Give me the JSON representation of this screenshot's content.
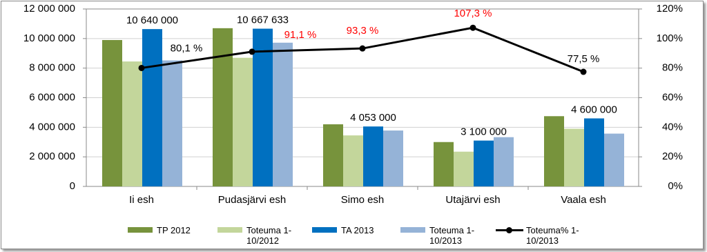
{
  "chart_data": {
    "type": "bar",
    "categories": [
      "Ii esh",
      "Pudasjärvi esh",
      "Simo esh",
      "Utajärvi esh",
      "Vaala esh"
    ],
    "series": [
      {
        "name": "TP 2012",
        "type": "bar",
        "color": "#77933c",
        "values": [
          9900000,
          10700000,
          4200000,
          3000000,
          4750000
        ]
      },
      {
        "name": "Toteuma 1-10/2012",
        "type": "bar",
        "color": "#c3d69b",
        "values": [
          8450000,
          8700000,
          3450000,
          2350000,
          3900000
        ]
      },
      {
        "name": "TA 2013",
        "type": "bar",
        "color": "#0070c0",
        "values": [
          10640000,
          10667633,
          4053000,
          3100000,
          4600000
        ],
        "value_labels": [
          "10 640 000",
          "10 667 633",
          "4 053 000",
          "3 100 000",
          "4 600 000"
        ]
      },
      {
        "name": "Toteuma 1-10/2013",
        "type": "bar",
        "color": "#95b3d7",
        "values": [
          8520000,
          9720000,
          3780000,
          3330000,
          3570000
        ]
      },
      {
        "name": "Toteuma% 1-10/2013",
        "type": "line",
        "axis": "y2",
        "color": "#000000",
        "values": [
          80.1,
          91.1,
          93.3,
          107.3,
          77.5
        ],
        "value_labels": [
          "80,1 %",
          "91,1 %",
          "93,3 %",
          "107,3 %",
          "77,5 %"
        ],
        "value_label_colors": [
          "#000000",
          "#ff0000",
          "#ff0000",
          "#ff0000",
          "#000000"
        ]
      }
    ],
    "ylim": [
      0,
      12000000
    ],
    "yticks": [
      0,
      {
        "value": 2000000,
        "label": "2 000 000"
      },
      {
        "value": 4000000,
        "label": "4 000 000"
      },
      {
        "value": 6000000,
        "label": "6 000 000"
      },
      {
        "value": 8000000,
        "label": "8 000 000"
      },
      {
        "value": 10000000,
        "label": "10 000 000"
      },
      {
        "value": 12000000,
        "label": "12 000 000"
      }
    ],
    "y2lim": [
      0,
      120
    ],
    "y2ticks": [
      {
        "value": 0,
        "label": "0%"
      },
      {
        "value": 20,
        "label": "20%"
      },
      {
        "value": 40,
        "label": "40%"
      },
      {
        "value": 60,
        "label": "60%"
      },
      {
        "value": 80,
        "label": "80%"
      },
      {
        "value": 100,
        "label": "100%"
      },
      {
        "value": 120,
        "label": "120%"
      }
    ],
    "grid": true,
    "legend": "bottom"
  }
}
